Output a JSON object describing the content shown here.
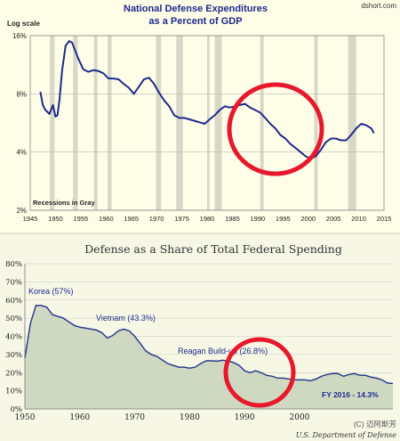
{
  "source": "dshort.com",
  "colors": {
    "top_bg": "#fefde8",
    "bottom_bg": "#f7f7e6",
    "line": "#1f2a8c",
    "recession": "#d8d8c8",
    "area_fill": "#cfd9c2",
    "area_line": "#2c3e8c",
    "circle": "#e8182c",
    "title": "#1f2a8c"
  },
  "chart_data": [
    {
      "type": "line",
      "title": "National Defense Expenditures",
      "subtitle": "as a Percent of GDP",
      "ylabel": "Log scale",
      "y_scale": "log",
      "ylim": [
        2,
        16
      ],
      "yticks": [
        2,
        4,
        8,
        16
      ],
      "ytick_labels": [
        "2%",
        "4%",
        "8%",
        "16%"
      ],
      "xlim": [
        1945,
        2015
      ],
      "xticks": [
        1945,
        1950,
        1955,
        1960,
        1965,
        1970,
        1975,
        1980,
        1985,
        1990,
        1995,
        2000,
        2005,
        2010,
        2015
      ],
      "xtick_labels": [
        "1945",
        "1950",
        "1955",
        "1960",
        "1965",
        "1970",
        "1975",
        "1980",
        "1985",
        "1990",
        "1995",
        "2000",
        "2005",
        "2010",
        "2015"
      ],
      "annotation": "Recessions in Gray",
      "recessions": [
        [
          1948.9,
          1949.8
        ],
        [
          1953.5,
          1954.4
        ],
        [
          1957.6,
          1958.3
        ],
        [
          1960.3,
          1961.1
        ],
        [
          1969.9,
          1970.9
        ],
        [
          1973.9,
          1975.2
        ],
        [
          1980.0,
          1980.5
        ],
        [
          1981.5,
          1982.9
        ],
        [
          1990.5,
          1991.2
        ],
        [
          2001.2,
          2001.9
        ],
        [
          2007.9,
          2009.5
        ]
      ],
      "series": [
        {
          "x": [
            1947,
            1947.5,
            1948,
            1948.8,
            1949.5,
            1950,
            1950.4,
            1950.8,
            1951.3,
            1952,
            1952.7,
            1953.3,
            1953.8,
            1954.5,
            1955.5,
            1956.5,
            1957.5,
            1958.5,
            1959.5,
            1960.5,
            1961.5,
            1962.5,
            1963.5,
            1964.5,
            1965.5,
            1966.5,
            1967.5,
            1968.5,
            1969.5,
            1970.5,
            1971.5,
            1972.5,
            1973.5,
            1974.5,
            1975.5,
            1976.5,
            1977.5,
            1978.5,
            1979.5,
            1980.5,
            1981.5,
            1982.5,
            1983.5,
            1984.5,
            1985.5,
            1986.5,
            1987.5,
            1988.5,
            1989.5,
            1990.5,
            1991.5,
            1992.5,
            1993.5,
            1994.5,
            1995.5,
            1996.5,
            1997.5,
            1998.5,
            1999.5,
            2000.5,
            2001.5,
            2002.5,
            2003.5,
            2004.5,
            2005.5,
            2006.5,
            2007.5,
            2008.5,
            2009.5,
            2010.5,
            2011.5,
            2012.5,
            2013
          ],
          "y": [
            8.2,
            7.0,
            6.6,
            6.3,
            7.0,
            6.1,
            6.2,
            7.5,
            10.5,
            14.2,
            15.0,
            14.7,
            13.6,
            12.2,
            10.7,
            10.4,
            10.6,
            10.5,
            10.2,
            9.6,
            9.6,
            9.5,
            9.0,
            8.6,
            8.0,
            8.7,
            9.5,
            9.7,
            9.0,
            8.1,
            7.4,
            6.9,
            6.2,
            6.0,
            6.0,
            5.9,
            5.8,
            5.7,
            5.6,
            5.9,
            6.2,
            6.6,
            6.9,
            6.8,
            6.9,
            7.0,
            7.1,
            6.8,
            6.6,
            6.4,
            6.0,
            5.6,
            5.3,
            4.9,
            4.7,
            4.4,
            4.2,
            4.0,
            3.8,
            3.7,
            3.8,
            4.1,
            4.5,
            4.7,
            4.7,
            4.6,
            4.6,
            4.9,
            5.3,
            5.6,
            5.5,
            5.3,
            5.0
          ]
        }
      ]
    },
    {
      "type": "area",
      "title": "Defense as a Share of Total Federal Spending",
      "ylim": [
        0,
        80
      ],
      "yticks": [
        0,
        10,
        20,
        30,
        40,
        50,
        60,
        70,
        80
      ],
      "ytick_labels": [
        "0%",
        "10%",
        "20%",
        "30%",
        "40%",
        "50%",
        "60%",
        "70%",
        "80%"
      ],
      "xlim": [
        1950,
        2017
      ],
      "xticks": [
        1950,
        1960,
        1970,
        1980,
        1990,
        2000
      ],
      "xtick_labels": [
        "1950",
        "1960",
        "1970",
        "1980",
        "1990",
        "2000"
      ],
      "annotations": [
        "Korea (57%)",
        "Vietnam (43.3%)",
        "Reagan Build-up (26.8%)",
        "FY 2016 - 14.3%"
      ],
      "source_note": "U.S. Department of Defense",
      "series": [
        {
          "x": [
            1950,
            1951,
            1952,
            1953,
            1954,
            1955,
            1956,
            1957,
            1958,
            1959,
            1960,
            1961,
            1962,
            1963,
            1964,
            1965,
            1966,
            1967,
            1968,
            1969,
            1970,
            1971,
            1972,
            1973,
            1974,
            1975,
            1976,
            1977,
            1978,
            1979,
            1980,
            1981,
            1982,
            1983,
            1984,
            1985,
            1986,
            1987,
            1988,
            1989,
            1990,
            1991,
            1992,
            1993,
            1994,
            1995,
            1996,
            1997,
            1998,
            1999,
            2000,
            2001,
            2002,
            2003,
            2004,
            2005,
            2006,
            2007,
            2008,
            2009,
            2010,
            2011,
            2012,
            2013,
            2014,
            2015,
            2016,
            2017
          ],
          "y": [
            28,
            47,
            57,
            57,
            56,
            52,
            51,
            50,
            48,
            46,
            45,
            44.5,
            44,
            43.5,
            42,
            39,
            40.5,
            43,
            44,
            43,
            40,
            36,
            32,
            30,
            29,
            27,
            25,
            24,
            23,
            23,
            22.5,
            23,
            25,
            26.5,
            26.5,
            26.3,
            26.8,
            26.5,
            25.5,
            24,
            21,
            20,
            21,
            20,
            18.5,
            18,
            17,
            17,
            16.5,
            16,
            16,
            16,
            15.5,
            16.5,
            18,
            19,
            19.5,
            19.5,
            18,
            19,
            19.5,
            18.5,
            18.5,
            17.5,
            17,
            16,
            14.3,
            14
          ]
        }
      ]
    }
  ],
  "watermark": "(C) 迈阿斯芳"
}
